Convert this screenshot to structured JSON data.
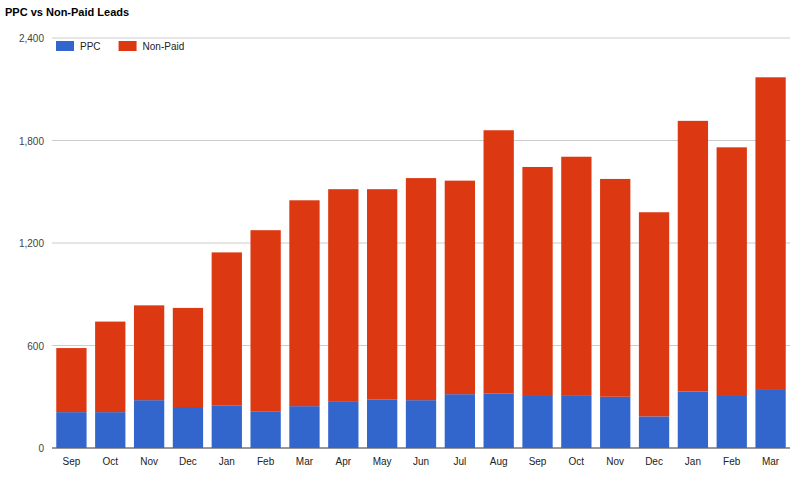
{
  "chart_data": {
    "type": "bar",
    "title": "PPC vs Non-Paid Leads",
    "stacked": true,
    "grid": true,
    "legend": "top-left",
    "categories": [
      "Sep",
      "Oct",
      "Nov",
      "Dec",
      "Jan",
      "Feb",
      "Mar",
      "Apr",
      "May",
      "Jun",
      "Jul",
      "Aug",
      "Sep",
      "Oct",
      "Nov",
      "Dec",
      "Jan",
      "Feb",
      "Mar"
    ],
    "series": [
      {
        "name": "PPC",
        "color": "#3366cc",
        "values": [
          210,
          210,
          280,
          240,
          250,
          215,
          245,
          270,
          285,
          280,
          315,
          320,
          310,
          305,
          300,
          185,
          330,
          310,
          345
        ]
      },
      {
        "name": "Non-Paid",
        "color": "#dc3912",
        "values": [
          375,
          530,
          555,
          580,
          895,
          1060,
          1205,
          1245,
          1230,
          1300,
          1250,
          1540,
          1335,
          1400,
          1275,
          1195,
          1585,
          1450,
          1825
        ]
      }
    ],
    "ylim": [
      0,
      2400
    ],
    "yticks": [
      0,
      600,
      {
        "value": 1200,
        "label": "1,200"
      },
      {
        "value": 1800,
        "label": "1,800"
      },
      {
        "value": 2400,
        "label": "2,400"
      }
    ]
  }
}
